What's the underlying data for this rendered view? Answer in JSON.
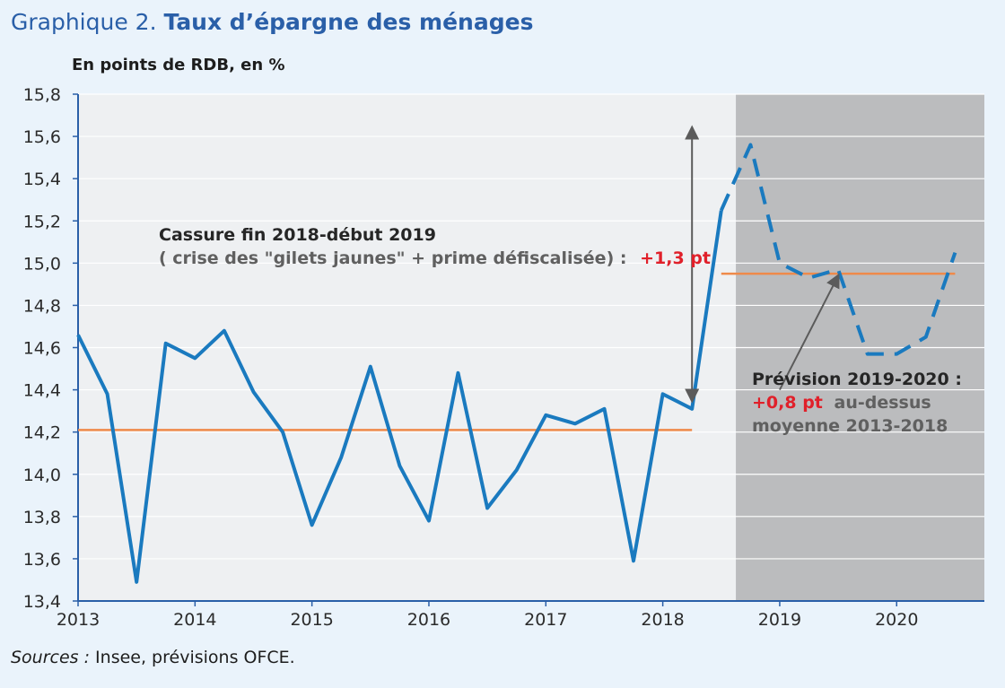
{
  "header": {
    "title_prefix": "Graphique 2.",
    "title_main": "Taux d’épargne des ménages",
    "unit": "En points de RDB, en %"
  },
  "footer": {
    "source_label": "Sources :",
    "source_text": " Insee, prévisions OFCE."
  },
  "colors": {
    "page_bg": "#eaf3fb",
    "plot_bg": "#eef0f2",
    "forecast_bg": "#bbbcbe",
    "series": "#1a7abf",
    "average": "#ef8a4a",
    "axis": "#2a5fa8",
    "arrow": "#5b5b5b",
    "red": "#e0202a",
    "dark": "#262626",
    "grey_text": "#606060"
  },
  "chart_data": {
    "type": "line",
    "ylim": [
      13.4,
      15.8
    ],
    "yticks": [
      13.4,
      13.6,
      13.8,
      14.0,
      14.2,
      14.4,
      14.6,
      14.8,
      15.0,
      15.2,
      15.4,
      15.6,
      15.8
    ],
    "ytick_labels": [
      "13,4",
      "13,6",
      "13,8",
      "14,0",
      "14,2",
      "14,4",
      "14,6",
      "14,8",
      "15,0",
      "15,2",
      "15,4",
      "15,6",
      "15,8"
    ],
    "xlim": [
      2013.0,
      2020.75
    ],
    "xticks": [
      2013,
      2014,
      2015,
      2016,
      2017,
      2018,
      2019,
      2020
    ],
    "xtick_labels": [
      "2013",
      "2014",
      "2015",
      "2016",
      "2017",
      "2018",
      "2019",
      "2020"
    ],
    "grid": true,
    "forecast_start": 2018.625,
    "series": [
      {
        "style": "solid",
        "x": [
          2013.0,
          2013.25,
          2013.5,
          2013.75,
          2014.0,
          2014.25,
          2014.5,
          2014.75,
          2015.0,
          2015.25,
          2015.5,
          2015.75,
          2016.0,
          2016.25,
          2016.5,
          2016.75,
          2017.0,
          2017.25,
          2017.5,
          2017.75,
          2018.0,
          2018.25,
          2018.5
        ],
        "y": [
          14.66,
          14.38,
          13.49,
          14.62,
          14.55,
          14.68,
          14.39,
          14.2,
          13.76,
          14.08,
          14.51,
          14.04,
          13.78,
          14.48,
          13.84,
          14.02,
          14.28,
          14.24,
          14.31,
          13.59,
          14.38,
          14.31,
          15.25
        ]
      },
      {
        "style": "dashed",
        "x": [
          2018.5,
          2018.75,
          2019.0,
          2019.25,
          2019.5,
          2019.75,
          2020.0,
          2020.25,
          2020.5
        ],
        "y": [
          15.25,
          15.56,
          15.0,
          14.93,
          14.97,
          14.57,
          14.57,
          14.65,
          15.05
        ]
      }
    ],
    "reference_lines": [
      {
        "y": 14.21,
        "x_from": 2013.0,
        "x_to": 2018.25
      },
      {
        "y": 14.95,
        "x_from": 2018.5,
        "x_to": 2020.5
      }
    ],
    "arrows": [
      {
        "type": "double",
        "x": 2018.25,
        "y_from": 14.35,
        "y_to": 15.64
      },
      {
        "type": "single",
        "from": [
          2019.0,
          14.4
        ],
        "to": [
          2019.5,
          14.94
        ]
      }
    ],
    "annotations": {
      "break_title": "Cassure fin 2018-début 2019",
      "break_detail": "( crise des \"gilets jaunes\" + prime défiscalisée) :",
      "break_value": "+1,3 pt",
      "forecast_title": "Prévision 2019-2020 :",
      "forecast_value": "+0,8 pt",
      "forecast_line2": "au-dessus",
      "forecast_line3": "moyenne 2013-2018"
    }
  }
}
